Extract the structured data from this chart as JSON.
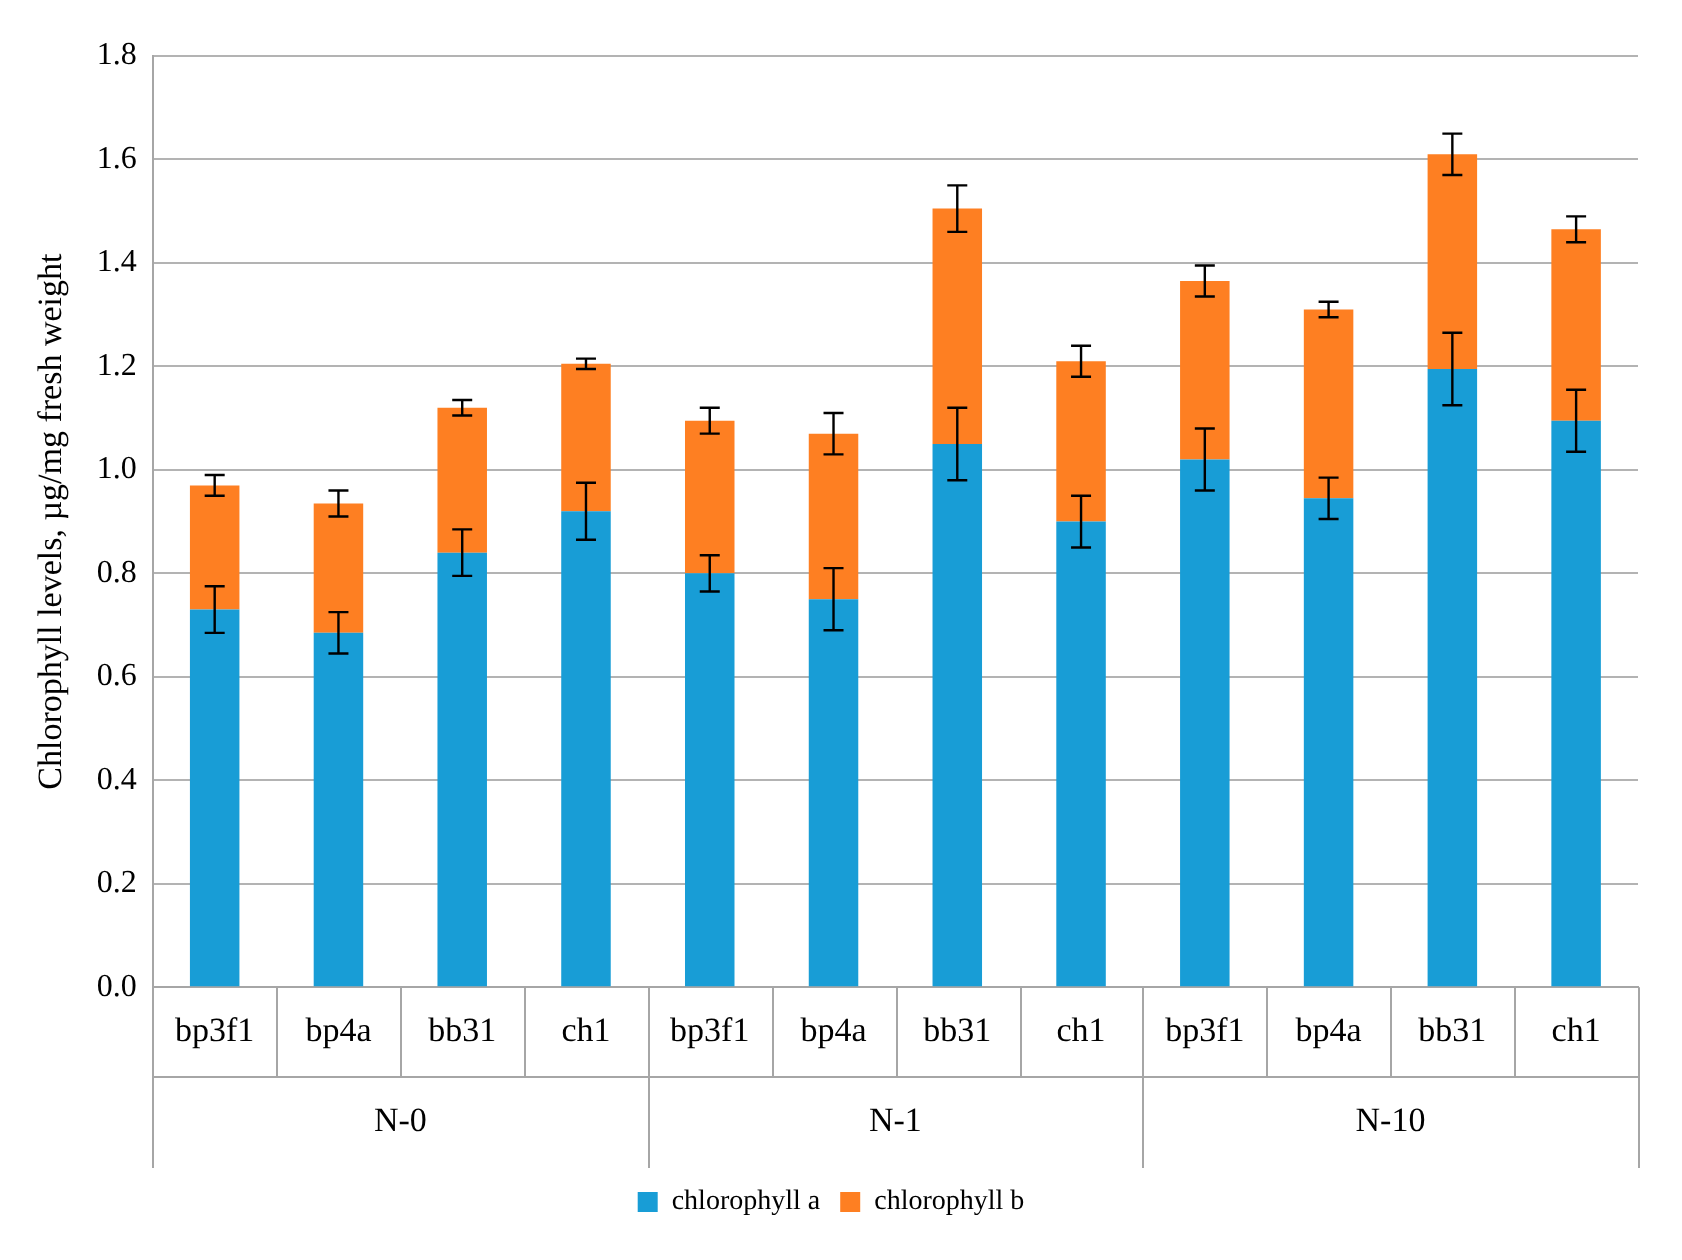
{
  "chart_data": {
    "type": "bar",
    "stacked": true,
    "ylabel": "Chlorophyll levels, µg/mg fresh weight",
    "categories": [
      "bp3f1",
      "bp4a",
      "bb31",
      "ch1",
      "bp3f1",
      "bp4a",
      "bb31",
      "ch1",
      "bp3f1",
      "bp4a",
      "bb31",
      "ch1"
    ],
    "annotations": [
      "N-0",
      "N-1",
      "N-10"
    ],
    "series": [
      {
        "name": "chlorophyll a",
        "color": "#189dd6",
        "values": [
          0.73,
          0.685,
          0.84,
          0.92,
          0.8,
          0.75,
          1.05,
          0.9,
          1.02,
          0.945,
          1.195,
          1.095
        ],
        "errors": [
          0.045,
          0.04,
          0.045,
          0.055,
          0.035,
          0.06,
          0.07,
          0.05,
          0.06,
          0.04,
          0.07,
          0.06
        ]
      },
      {
        "name": "chlorophyll b",
        "color": "#fe7f22",
        "values": [
          0.24,
          0.25,
          0.28,
          0.285,
          0.295,
          0.32,
          0.455,
          0.31,
          0.345,
          0.365,
          0.415,
          0.37
        ],
        "errors": [
          0.02,
          0.025,
          0.015,
          0.01,
          0.025,
          0.04,
          0.045,
          0.03,
          0.03,
          0.015,
          0.04,
          0.025
        ]
      }
    ],
    "ylim": [
      0,
      1.8
    ],
    "yticks": [
      {
        "value": 0,
        "label": "0.0"
      },
      {
        "value": 0.2,
        "label": "0.2"
      },
      {
        "value": 0.4,
        "label": "0.4"
      },
      {
        "value": 0.6,
        "label": "0.6"
      },
      {
        "value": 0.8,
        "label": "0.8"
      },
      {
        "value": 1.0,
        "label": "1.0"
      },
      {
        "value": 1.2,
        "label": "1.2"
      },
      {
        "value": 1.4,
        "label": "1.4"
      },
      {
        "value": 1.6,
        "label": "1.6"
      },
      {
        "value": 1.8,
        "label": "1.8"
      }
    ],
    "grid": "y",
    "legend": "bottom"
  }
}
